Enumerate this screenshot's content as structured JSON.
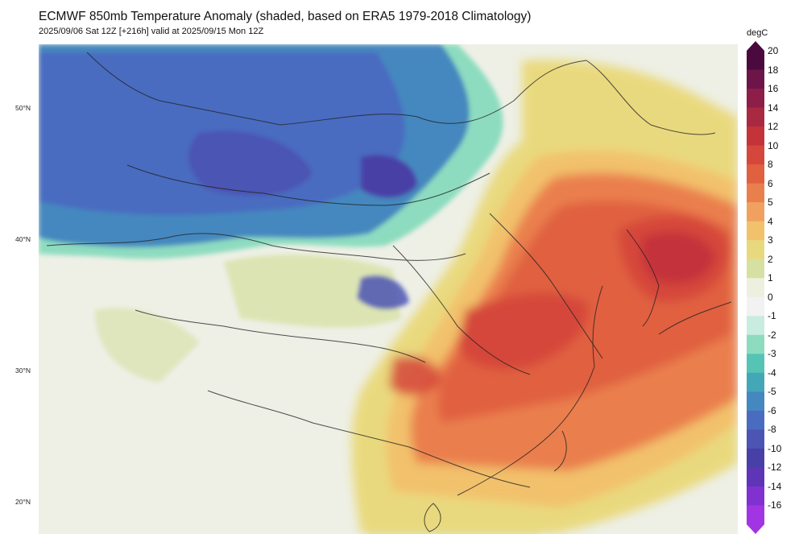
{
  "header": {
    "title": "ECMWF 850mb Temperature Anomaly (shaded, based on ERA5 1979-2018 Climatology)",
    "subtitle": "2025/09/06 Sat 12Z [+216h] valid at 2025/09/15 Mon 12Z"
  },
  "map": {
    "latitude_labels": [
      "50°N",
      "40°N",
      "30°N",
      "20°N"
    ]
  },
  "colorbar": {
    "unit": "degC",
    "ticks": [
      "20",
      "18",
      "16",
      "14",
      "12",
      "10",
      "8",
      "6",
      "5",
      "4",
      "3",
      "2",
      "1",
      "0",
      "-1",
      "-2",
      "-3",
      "-4",
      "-5",
      "-6",
      "-8",
      "-10",
      "-12",
      "-14",
      "-16"
    ],
    "colors": {
      "c20": "#4a0a3e",
      "c18": "#6d1548",
      "c16": "#8c1e48",
      "c14": "#a92a40",
      "c12": "#c4333a",
      "c10": "#d5473b",
      "c8": "#e0603f",
      "c6": "#ea7f4e",
      "c5": "#f0a160",
      "c4": "#f2c16c",
      "c3": "#e9d97e",
      "c2": "#d6e0a2",
      "c1": "#eef0df",
      "c0": "#f2f2f2",
      "cm1": "#c8ecdf",
      "cm2": "#8ddcc0",
      "cm3": "#55c4b5",
      "cm4": "#44a7b8",
      "cm5": "#4588bf",
      "cm6": "#4a6cc0",
      "cm8": "#4c54b4",
      "cm10": "#4840a6",
      "cm12": "#5f35b8",
      "cm14": "#8131cf",
      "cm16": "#a135e4"
    }
  }
}
